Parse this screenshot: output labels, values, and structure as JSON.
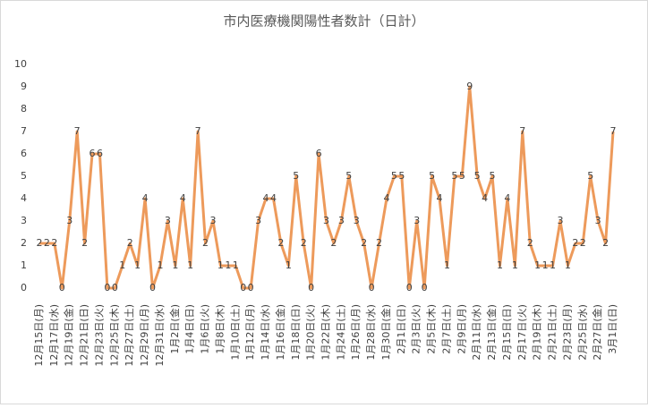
{
  "chart_data": {
    "type": "line",
    "title": "市内医療機関陽性者数計（日計）",
    "categories": [
      "12月15日(月)",
      null,
      "12月17日(水)",
      null,
      "12月19日(金)",
      null,
      "12月21日(日)",
      null,
      "12月23日(火)",
      null,
      "12月25日(木)",
      null,
      "12月27日(土)",
      null,
      "12月29日(月)",
      null,
      "12月31日(水)",
      null,
      "1月2日(金)",
      null,
      "1月4日(日)",
      null,
      "1月6日(火)",
      null,
      "1月8日(木)",
      null,
      "1月10日(土)",
      null,
      "1月12日(月)",
      null,
      "1月14日(水)",
      null,
      "1月16日(金)",
      null,
      "1月18日(日)",
      null,
      "1月20日(火)",
      null,
      "1月22日(木)",
      null,
      "1月24日(土)",
      null,
      "1月26日(月)",
      null,
      "1月28日(水)",
      null,
      "1月30日(金)",
      null,
      "2月1日(日)",
      null,
      "2月3日(火)",
      null,
      "2月5日(木)",
      null,
      "2月7日(土)",
      null,
      "2月9日(月)",
      null,
      "2月11日(水)",
      null,
      "2月13日(金)",
      null,
      "2月15日(日)",
      null,
      "2月17日(火)",
      null,
      "2月19日(木)",
      null,
      "2月21日(土)",
      null,
      "2月23日(月)",
      null,
      "2月25日(水)",
      null,
      "2月27日(金)",
      null,
      "3月1日(日)"
    ],
    "values": [
      2,
      2,
      2,
      0,
      3,
      7,
      2,
      6,
      6,
      0,
      0,
      1,
      2,
      1,
      4,
      0,
      1,
      3,
      1,
      4,
      1,
      7,
      2,
      3,
      1,
      1,
      1,
      0,
      0,
      3,
      4,
      4,
      2,
      1,
      5,
      2,
      0,
      6,
      3,
      2,
      3,
      5,
      3,
      2,
      0,
      2,
      4,
      5,
      5,
      0,
      3,
      0,
      5,
      4,
      1,
      5,
      5,
      9,
      5,
      4,
      5,
      1,
      4,
      1,
      7,
      2,
      1,
      1,
      1,
      3,
      1,
      2,
      2,
      5,
      3,
      2,
      7
    ],
    "color": "#ed9a5b",
    "ylim": [
      0,
      10
    ],
    "yticks": [
      0,
      1,
      2,
      3,
      4,
      5,
      6,
      7,
      8,
      9,
      10
    ],
    "grid": false
  }
}
